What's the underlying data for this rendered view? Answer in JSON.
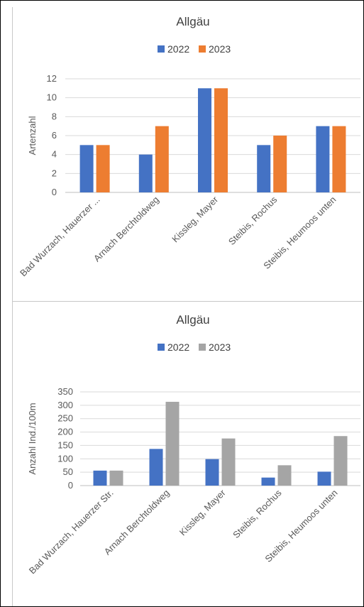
{
  "chart_data": [
    {
      "type": "bar",
      "title": "Allgäu",
      "ylabel": "Artenzahl",
      "xlabel": "",
      "categories": [
        "Bad Wurzach, Hauerzer ...",
        "Arnach Berchtoldweg",
        "Kissleg, Mayer",
        "Steibis, Rochus",
        "Steibis, Heumoos unten"
      ],
      "series": [
        {
          "name": "2022",
          "color": "#4472c4",
          "values": [
            5,
            4,
            11,
            5,
            7
          ]
        },
        {
          "name": "2023",
          "color": "#ed7d31",
          "values": [
            5,
            7,
            11,
            6,
            7
          ]
        }
      ],
      "ylim": [
        0,
        12
      ],
      "yticks": [
        "0",
        "2",
        "4",
        "6",
        "8",
        "10",
        "12"
      ],
      "grid": true,
      "legend": "top-center"
    },
    {
      "type": "bar",
      "title": "Allgäu",
      "ylabel": "Anzahl Ind./100m",
      "xlabel": "",
      "categories": [
        "Bad Wurzach, Hauerzer Str.",
        "Arnach Berchtoldweg",
        "Kissleg, Mayer",
        "Steibis, Rochus",
        "Steibis, Heumoos unten"
      ],
      "series": [
        {
          "name": "2022",
          "color": "#4472c4",
          "values": [
            56,
            137,
            99,
            30,
            52
          ]
        },
        {
          "name": "2023",
          "color": "#a5a5a5",
          "values": [
            56,
            313,
            176,
            76,
            185
          ]
        }
      ],
      "ylim": [
        0,
        350
      ],
      "yticks": [
        "0",
        "50",
        "100",
        "150",
        "200",
        "250",
        "300",
        "350"
      ],
      "grid": true,
      "legend": "top-center"
    }
  ]
}
